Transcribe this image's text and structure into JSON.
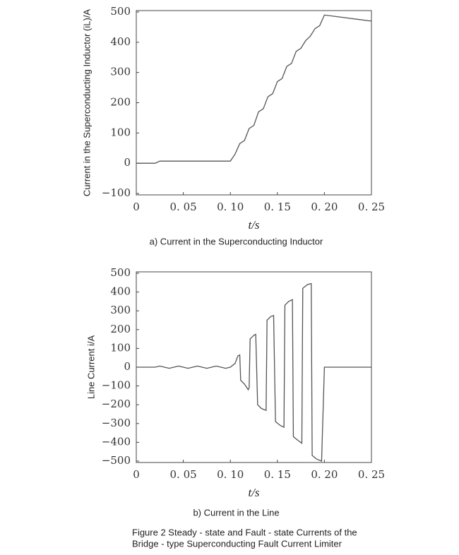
{
  "chart_data": [
    {
      "type": "line",
      "caption": "a) Current in the Superconducting Inductor",
      "ylabel": "Current in the Superconducting Inductor (iL)/A",
      "xlabel": "t/s",
      "xlim": [
        0,
        0.25
      ],
      "xticks": [
        0,
        {
          "value": 0.05,
          "label": "0. 05"
        },
        {
          "value": 0.1,
          "label": "0. 10"
        },
        {
          "value": 0.15,
          "label": "0. 15"
        },
        {
          "value": 0.2,
          "label": "0. 20"
        },
        {
          "value": 0.25,
          "label": "0. 25"
        }
      ],
      "ylim": [
        -100,
        500
      ],
      "yticks": [
        {
          "value": -100,
          "label": "−100"
        },
        0,
        100,
        200,
        300,
        400,
        500
      ],
      "series": [
        {
          "color": "#555555",
          "x": [
            0,
            0.02,
            0.025,
            0.1,
            0.105,
            0.11,
            0.115,
            0.12,
            0.125,
            0.13,
            0.135,
            0.14,
            0.145,
            0.15,
            0.155,
            0.16,
            0.165,
            0.17,
            0.175,
            0.18,
            0.185,
            0.19,
            0.195,
            0.2,
            0.25
          ],
          "values": [
            0,
            0,
            7,
            7,
            30,
            65,
            75,
            115,
            125,
            170,
            180,
            220,
            230,
            270,
            280,
            320,
            330,
            370,
            380,
            405,
            420,
            445,
            455,
            490,
            470
          ]
        }
      ]
    },
    {
      "type": "line",
      "caption": "b) Current in the Line",
      "ylabel": "Line Current i/A",
      "xlabel": "t/s",
      "xlim": [
        0,
        0.25
      ],
      "xticks": [
        0,
        {
          "value": 0.05,
          "label": "0. 05"
        },
        {
          "value": 0.1,
          "label": "0. 10"
        },
        {
          "value": 0.15,
          "label": "0. 15"
        },
        {
          "value": 0.2,
          "label": "0. 20"
        },
        {
          "value": 0.25,
          "label": "0. 25"
        }
      ],
      "ylim": [
        -500,
        500
      ],
      "yticks": [
        {
          "value": -500,
          "label": "−500"
        },
        {
          "value": -400,
          "label": "−400"
        },
        {
          "value": -300,
          "label": "−300"
        },
        {
          "value": -200,
          "label": "−200"
        },
        {
          "value": -100,
          "label": "−100"
        },
        0,
        100,
        200,
        300,
        400,
        500
      ],
      "series": [
        {
          "color": "#555555",
          "x": [
            0,
            0.02,
            0.025,
            0.03,
            0.035,
            0.04,
            0.045,
            0.05,
            0.055,
            0.06,
            0.065,
            0.07,
            0.075,
            0.08,
            0.085,
            0.09,
            0.095,
            0.1,
            0.105,
            0.108,
            0.11,
            0.111,
            0.115,
            0.119,
            0.12,
            0.121,
            0.125,
            0.127,
            0.129,
            0.133,
            0.138,
            0.139,
            0.143,
            0.146,
            0.148,
            0.153,
            0.157,
            0.158,
            0.162,
            0.166,
            0.167,
            0.172,
            0.176,
            0.177,
            0.182,
            0.186,
            0.187,
            0.192,
            0.197,
            0.2,
            0.25
          ],
          "values": [
            0,
            0,
            6,
            0,
            -6,
            0,
            6,
            0,
            -6,
            0,
            6,
            0,
            -6,
            0,
            6,
            0,
            -6,
            0,
            20,
            60,
            65,
            -70,
            -90,
            -120,
            -110,
            150,
            170,
            175,
            -200,
            -220,
            -230,
            250,
            270,
            275,
            -290,
            -310,
            -320,
            330,
            350,
            360,
            -370,
            -390,
            -405,
            420,
            440,
            445,
            -470,
            -490,
            -500,
            0,
            0
          ]
        }
      ]
    }
  ],
  "figure_caption": [
    "Figure 2 Steady - state and Fault - state Currents of the",
    "Bridge - type Superconducting Fault Current Limiter"
  ]
}
